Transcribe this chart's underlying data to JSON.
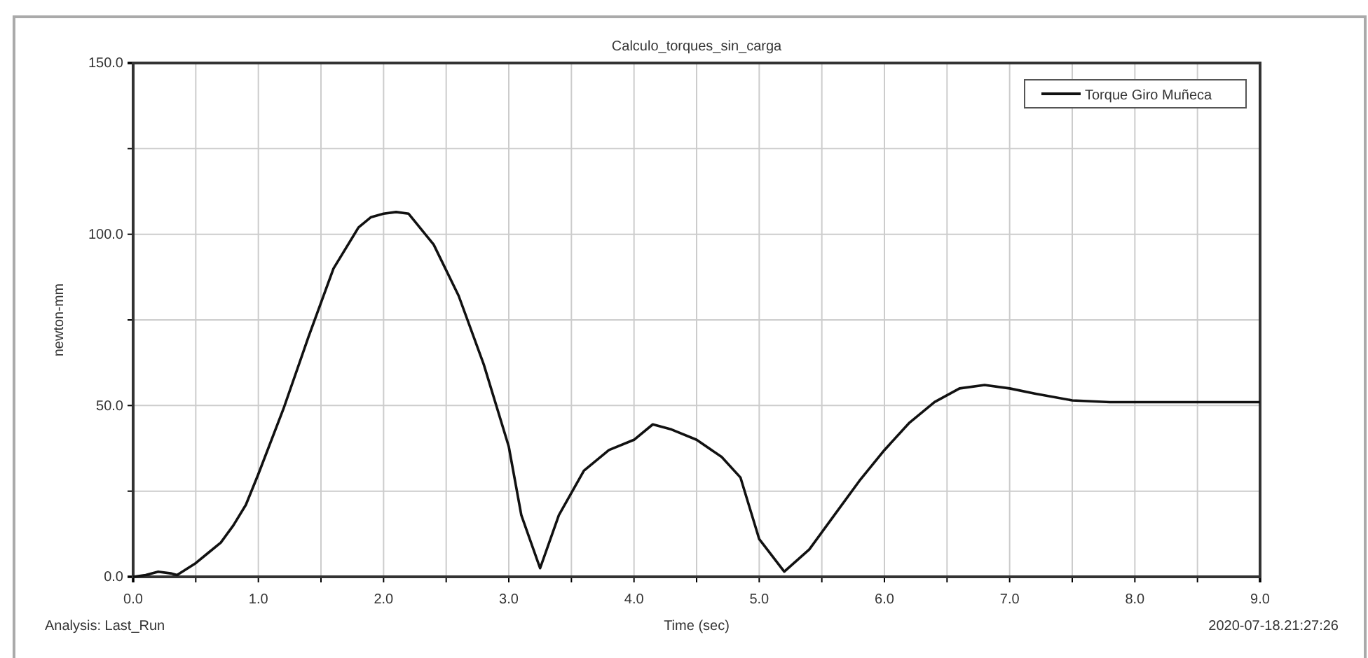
{
  "chart_data": {
    "type": "line",
    "title": "Calculo_torques_sin_carga",
    "xlabel": "Time (sec)",
    "ylabel": "newton-mm",
    "x": [
      0,
      0.1,
      0.2,
      0.3,
      0.35,
      0.5,
      0.6,
      0.7,
      0.8,
      0.9,
      1.0,
      1.2,
      1.4,
      1.6,
      1.8,
      1.9,
      2.0,
      2.1,
      2.2,
      2.4,
      2.6,
      2.8,
      3.0,
      3.1,
      3.25,
      3.4,
      3.6,
      3.8,
      4.0,
      4.15,
      4.3,
      4.5,
      4.7,
      4.85,
      5.0,
      5.2,
      5.4,
      5.6,
      5.8,
      6.0,
      6.2,
      6.4,
      6.6,
      6.8,
      7.0,
      7.2,
      7.5,
      7.8,
      8.0,
      9.0
    ],
    "series": [
      {
        "name": "Torque Giro Muñeca",
        "color": "#111111",
        "values": [
          0,
          0.5,
          1.5,
          1,
          0.5,
          4,
          7,
          10,
          15,
          21,
          30,
          49,
          70,
          90,
          102,
          105,
          106,
          106.5,
          106,
          97,
          82,
          62,
          38,
          18,
          2.5,
          18,
          31,
          37,
          40,
          44.5,
          43,
          40,
          35,
          29,
          11,
          1.5,
          8,
          18,
          28,
          37,
          45,
          51,
          55,
          56,
          55,
          53.5,
          51.5,
          51,
          51,
          51
        ]
      }
    ],
    "xlim": [
      0,
      9
    ],
    "xticks": [
      {
        "value": 0,
        "label": "0.0"
      },
      {
        "value": 0.5,
        "label": null
      },
      {
        "value": 1,
        "label": "1.0"
      },
      {
        "value": 1.5,
        "label": null
      },
      {
        "value": 2,
        "label": "2.0"
      },
      {
        "value": 2.5,
        "label": null
      },
      {
        "value": 3,
        "label": "3.0"
      },
      {
        "value": 3.5,
        "label": null
      },
      {
        "value": 4,
        "label": "4.0"
      },
      {
        "value": 4.5,
        "label": null
      },
      {
        "value": 5,
        "label": "5.0"
      },
      {
        "value": 5.5,
        "label": null
      },
      {
        "value": 6,
        "label": "6.0"
      },
      {
        "value": 6.5,
        "label": null
      },
      {
        "value": 7,
        "label": "7.0"
      },
      {
        "value": 7.5,
        "label": null
      },
      {
        "value": 8,
        "label": "8.0"
      },
      {
        "value": 8.5,
        "label": null
      },
      {
        "value": 9,
        "label": "9.0"
      }
    ],
    "ylim": [
      0,
      150
    ],
    "yticks": [
      {
        "value": 0,
        "label": "0.0"
      },
      {
        "value": 25,
        "label": null
      },
      {
        "value": 50,
        "label": "50.0"
      },
      {
        "value": 75,
        "label": null
      },
      {
        "value": 100,
        "label": "100.0"
      },
      {
        "value": 125,
        "label": null
      },
      {
        "value": 150,
        "label": "150.0"
      }
    ],
    "grid": true,
    "legend": "top right",
    "line_style": "solid",
    "annotations": [
      "Analysis: Last_Run",
      "2020-07-18.21:27:26"
    ]
  }
}
